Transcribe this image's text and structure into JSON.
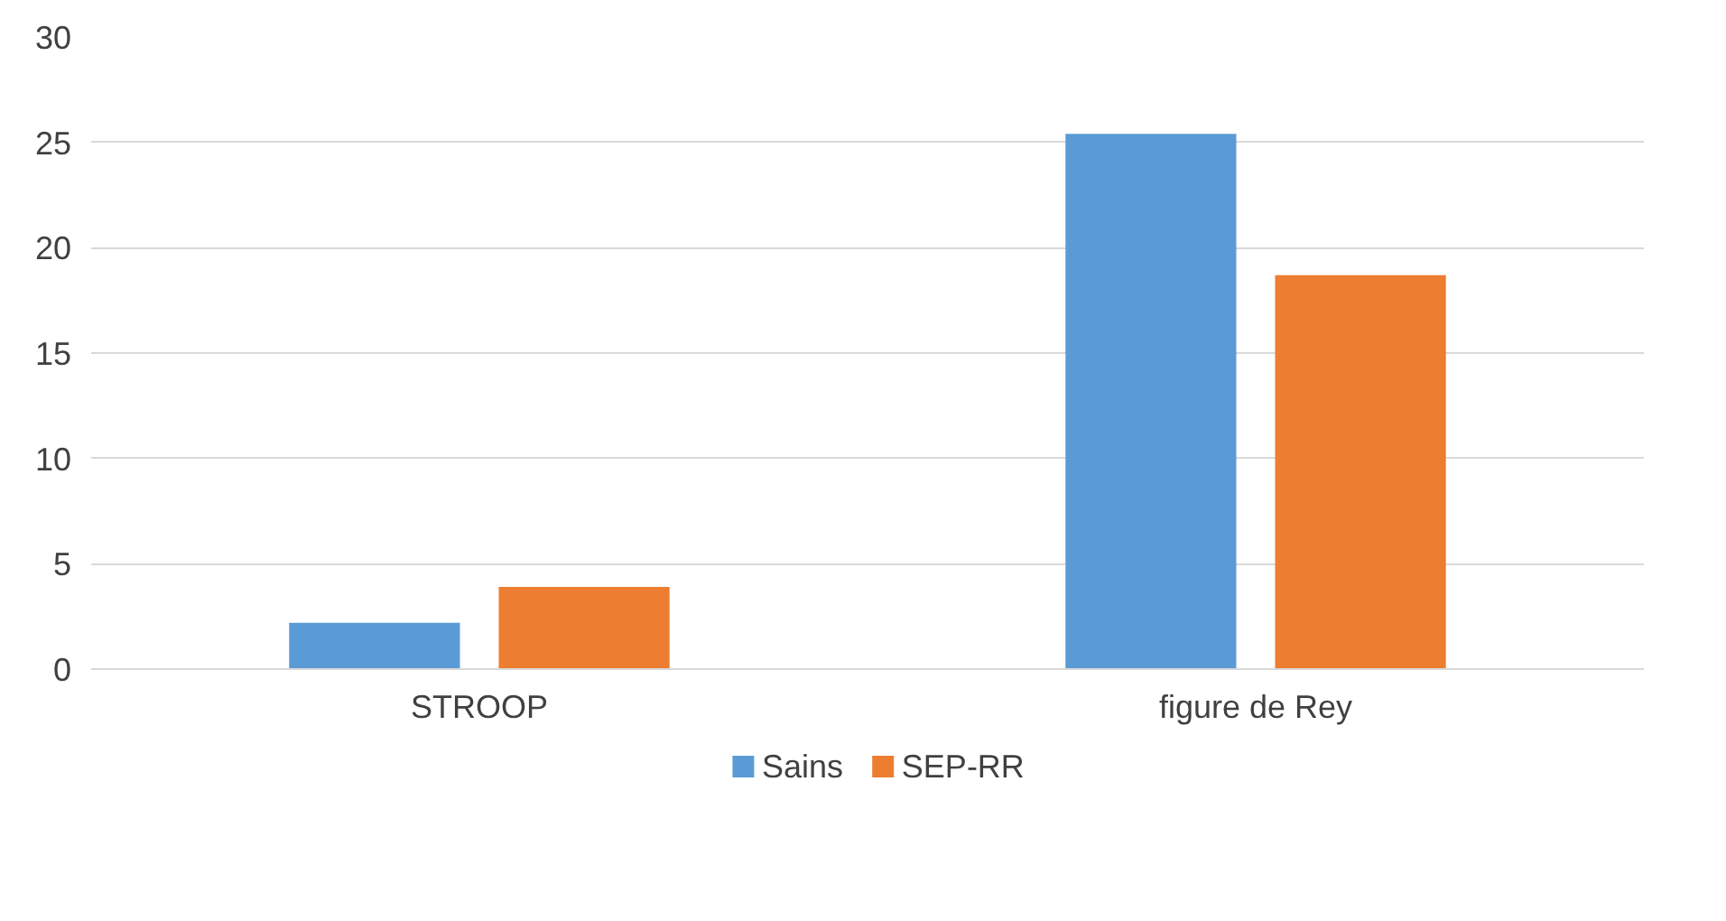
{
  "chart_data": {
    "type": "bar",
    "categories": [
      "STROOP",
      "figure de Rey"
    ],
    "series": [
      {
        "name": "Sains",
        "color": "#5b9bd5",
        "values": [
          2.2,
          25.4
        ]
      },
      {
        "name": "SEP-RR",
        "color": "#ed7d31",
        "values": [
          3.9,
          18.7
        ]
      }
    ],
    "ylim": [
      0,
      30
    ],
    "yticks": [
      0,
      5,
      10,
      15,
      20,
      25,
      30
    ],
    "grid": "y",
    "legend": "bottom"
  }
}
